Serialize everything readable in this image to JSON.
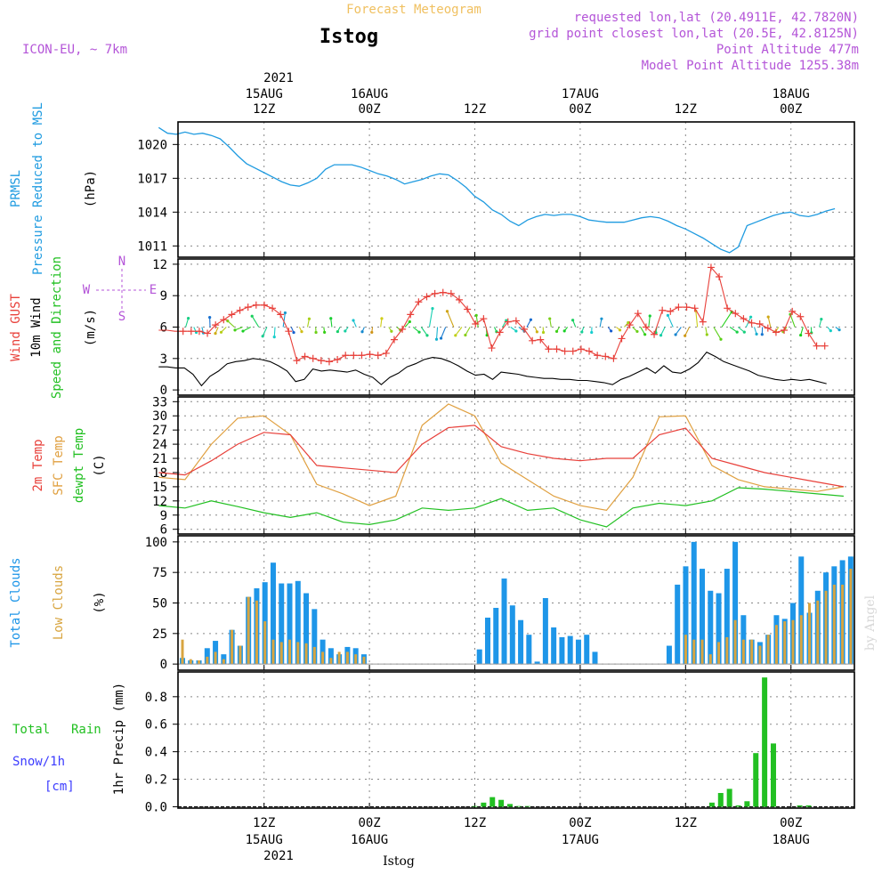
{
  "header": {
    "product": "Forecast Meteogram",
    "station": "Istog",
    "model": "ICON-EU, ~ 7km",
    "requested": "requested lon,lat (20.4911E, 42.7820N)",
    "gridpoint": "grid point closest lon,lat (20.5E, 42.8125N)",
    "point_alt": "Point Altitude 477m",
    "model_alt": "Model Point Altitude 1255.38m",
    "footer": "Istog",
    "credit": "by Angel"
  },
  "time_axis": {
    "top_year": "2021",
    "ticks": [
      {
        "hour": 12,
        "top1": "15AUG",
        "top2": "12Z",
        "bot1": "12Z",
        "bot2": "15AUG"
      },
      {
        "hour": 24,
        "top1": "16AUG",
        "top2": "00Z",
        "bot1": "00Z",
        "bot2": "16AUG"
      },
      {
        "hour": 36,
        "top1": "",
        "top2": "12Z",
        "bot1": "12Z",
        "bot2": ""
      },
      {
        "hour": 48,
        "top1": "17AUG",
        "top2": "00Z",
        "bot1": "00Z",
        "bot2": "17AUG"
      },
      {
        "hour": 60,
        "top1": "",
        "top2": "12Z",
        "bot1": "12Z",
        "bot2": ""
      },
      {
        "hour": 72,
        "top1": "18AUG",
        "top2": "00Z",
        "bot1": "00Z",
        "bot2": "18AUG"
      }
    ],
    "bottom_year": "2021"
  },
  "panel_labels": {
    "p1": {
      "a": "PRMSL",
      "b": "Pressure Reduced to MSL",
      "unit": "(hPa)"
    },
    "p2": {
      "a": "Wind GUST",
      "b": "10m Wind",
      "c": "Speed and Direction",
      "unit": "(m/s)",
      "compass": {
        "n": "N",
        "s": "S",
        "e": "E",
        "w": "W"
      }
    },
    "p3": {
      "a": "2m Temp",
      "b": "SFC Temp",
      "c": "dewpt Temp",
      "unit": "(C)"
    },
    "p4": {
      "a": "Total Clouds",
      "b": "Low Clouds",
      "unit": "(%)"
    },
    "p5": {
      "a": "Total",
      "a2": "Rain",
      "b": "Snow/1h",
      "c": "[cm]",
      "d": "1hr Precip (mm)"
    }
  },
  "colors": {
    "pressure": "#1f9be0",
    "gust": "#e8403a",
    "wind": "#000000",
    "t2m": "#e8403a",
    "tsfc": "#e0a040",
    "dewpt": "#22c022",
    "total_clouds": "#1e96e8",
    "low_clouds": "#d8a540",
    "rain": "#22c022",
    "label_purple": "#b455d8",
    "snow_label": "#3c3cff"
  },
  "chart_data": [
    {
      "type": "line",
      "name": "PRMSL",
      "x_unit": "hours since 15AUG 00Z",
      "ylim": [
        1010,
        1022
      ],
      "yticks": [
        1011,
        1014,
        1017,
        1020
      ],
      "grid": true,
      "x": [
        0,
        1,
        2,
        3,
        4,
        5,
        6,
        7,
        8,
        9,
        10,
        11,
        12,
        13,
        14,
        15,
        16,
        17,
        18,
        19,
        20,
        21,
        22,
        23,
        24,
        25,
        26,
        27,
        28,
        29,
        30,
        31,
        32,
        33,
        34,
        35,
        36,
        37,
        38,
        39,
        40,
        41,
        42,
        43,
        44,
        45,
        46,
        47,
        48,
        49,
        50,
        51,
        52,
        53,
        54,
        55,
        56,
        57,
        58,
        59,
        60,
        61,
        62,
        63,
        64,
        65,
        66,
        67,
        68,
        69,
        70,
        71,
        72,
        73,
        74,
        75,
        76,
        77
      ],
      "values": [
        1021.5,
        1021,
        1020.9,
        1021.1,
        1020.9,
        1021,
        1020.8,
        1020.5,
        1019.8,
        1019,
        1018.3,
        1017.9,
        1017.5,
        1017.1,
        1016.7,
        1016.4,
        1016.3,
        1016.6,
        1017,
        1017.8,
        1018.2,
        1018.2,
        1018.2,
        1018,
        1017.7,
        1017.4,
        1017.2,
        1016.9,
        1016.5,
        1016.7,
        1016.9,
        1017.2,
        1017.4,
        1017.3,
        1016.8,
        1016.2,
        1015.4,
        1014.9,
        1014.2,
        1013.8,
        1013.2,
        1012.8,
        1013.3,
        1013.6,
        1013.8,
        1013.7,
        1013.8,
        1013.8,
        1013.6,
        1013.3,
        1013.2,
        1013.1,
        1013.1,
        1013.1,
        1013.3,
        1013.5,
        1013.6,
        1013.5,
        1013.2,
        1012.8,
        1012.5,
        1012.1,
        1011.7,
        1011.2,
        1010.7,
        1010.4,
        1010.9,
        1012.8,
        1013.1,
        1013.4,
        1013.7,
        1013.9,
        1014,
        1013.7,
        1013.6,
        1013.8,
        1014.1,
        1014.3
      ]
    },
    {
      "type": "line",
      "name": "Wind",
      "ylim": [
        -0.5,
        12.5
      ],
      "yticks": [
        0,
        3,
        6,
        9,
        12
      ],
      "grid": true,
      "gust": [
        5.7,
        5.7,
        5.6,
        5.6,
        5.6,
        5.6,
        5.4,
        6.2,
        6.7,
        7.2,
        7.6,
        7.9,
        8.1,
        8.1,
        7.8,
        7.2,
        5.6,
        2.8,
        3.2,
        3.0,
        2.8,
        2.7,
        2.9,
        3.3,
        3.3,
        3.3,
        3.4,
        3.3,
        3.5,
        4.8,
        5.8,
        7.2,
        8.4,
        8.9,
        9.2,
        9.3,
        9.2,
        8.6,
        7.7,
        6.3,
        6.8,
        4.0,
        5.5,
        6.5,
        6.6,
        5.8,
        4.7,
        4.8,
        3.9,
        3.9,
        3.7,
        3.7,
        3.9,
        3.7,
        3.3,
        3.2,
        3.0,
        4.9,
        6.2,
        7.3,
        6.0,
        5.3,
        7.6,
        7.5,
        7.9,
        7.9,
        7.8,
        6.5,
        11.7,
        10.8,
        7.8,
        7.3,
        6.8,
        6.4,
        6.3,
        5.9,
        5.5,
        5.7,
        7.5,
        7.0,
        5.4,
        4.2,
        4.2
      ],
      "wind10": [
        2.2,
        2.2,
        2.1,
        2.1,
        1.5,
        0.4,
        1.3,
        1.8,
        2.5,
        2.7,
        2.8,
        3.0,
        2.9,
        2.7,
        2.3,
        1.8,
        0.8,
        1.0,
        2.0,
        1.8,
        1.9,
        1.8,
        1.7,
        1.9,
        1.5,
        1.2,
        0.5,
        1.2,
        1.6,
        2.2,
        2.5,
        2.9,
        3.1,
        3.0,
        2.7,
        2.3,
        1.8,
        1.4,
        1.5,
        1.0,
        1.7,
        1.6,
        1.5,
        1.3,
        1.2,
        1.1,
        1.1,
        1.0,
        1.0,
        0.9,
        0.9,
        0.8,
        0.7,
        0.5,
        1.0,
        1.3,
        1.7,
        2.1,
        1.6,
        2.3,
        1.7,
        1.6,
        2.0,
        2.6,
        3.6,
        3.2,
        2.7,
        2.4,
        2.1,
        1.8,
        1.4,
        1.2,
        1.0,
        0.9,
        1.0,
        0.9,
        1.0,
        0.8,
        0.6
      ]
    },
    {
      "type": "line",
      "name": "Temperature",
      "ylim": [
        5,
        34
      ],
      "yticks": [
        6,
        9,
        12,
        15,
        18,
        21,
        24,
        27,
        30,
        33
      ],
      "grid": true,
      "x": [
        0,
        3,
        6,
        9,
        12,
        15,
        18,
        21,
        24,
        27,
        30,
        33,
        36,
        39,
        42,
        45,
        48,
        51,
        54,
        57,
        60,
        63,
        66,
        69,
        72,
        75,
        78
      ],
      "t2m": [
        18,
        17.5,
        20.5,
        24,
        26.5,
        26,
        19.5,
        19,
        18.5,
        18,
        24,
        27.5,
        28,
        23.5,
        22,
        21,
        20.5,
        21,
        21,
        26,
        27.4,
        21,
        19.5,
        18,
        17,
        16,
        15
      ],
      "tsfc": [
        17,
        16.5,
        24,
        29.5,
        30,
        26,
        15.5,
        13.5,
        11,
        13,
        28,
        32.5,
        30,
        20,
        16.5,
        13,
        11,
        10,
        17,
        29.8,
        30,
        19.5,
        16.5,
        15,
        14.5,
        14,
        15
      ],
      "dewpt": [
        11,
        10.5,
        12,
        10.8,
        9.5,
        8.5,
        9.5,
        7.5,
        7,
        8,
        10.5,
        10,
        10.5,
        12.5,
        10,
        10.5,
        8,
        6.5,
        10.5,
        11.5,
        11,
        12,
        14.8,
        14.5,
        14,
        13.5,
        13
      ]
    },
    {
      "type": "bar",
      "name": "Clouds",
      "ylim": [
        -5,
        105
      ],
      "yticks": [
        0,
        25,
        50,
        75,
        100
      ],
      "grid": true,
      "total": [
        5,
        3,
        3,
        13,
        19,
        8,
        28,
        15,
        55,
        62,
        67,
        83,
        66,
        66,
        68,
        58,
        45,
        20,
        13,
        8,
        14,
        13,
        8,
        0,
        0,
        0,
        0,
        0,
        0,
        0,
        0,
        0,
        0,
        0,
        0,
        0,
        12,
        38,
        46,
        70,
        48,
        36,
        24,
        2,
        54,
        30,
        22,
        23,
        20,
        24,
        10,
        0,
        0,
        0,
        0,
        0,
        0,
        0,
        0,
        15,
        65,
        80,
        100,
        78,
        60,
        58,
        78,
        100,
        40,
        20,
        18,
        24,
        40,
        37,
        50,
        88,
        42,
        60,
        75,
        80,
        85,
        88
      ],
      "low": [
        20,
        4,
        3,
        6,
        10,
        4,
        28,
        15,
        55,
        52,
        35,
        20,
        18,
        20,
        18,
        17,
        14,
        10,
        5,
        10,
        10,
        8,
        6,
        0,
        0,
        0,
        0,
        0,
        0,
        0,
        0,
        0,
        0,
        0,
        0,
        0,
        0,
        0,
        0,
        0,
        0,
        0,
        0,
        0,
        0,
        0,
        0,
        0,
        0,
        0,
        0,
        0,
        0,
        0,
        0,
        0,
        0,
        0,
        0,
        0,
        0,
        24,
        20,
        20,
        8,
        18,
        22,
        36,
        20,
        20,
        15,
        24,
        32,
        35,
        36,
        40,
        50,
        52,
        60,
        65,
        65,
        78
      ]
    },
    {
      "type": "bar",
      "name": "Precipitation",
      "ylim": [
        -0.01,
        0.98
      ],
      "yticks": [
        0,
        0.2,
        0.4,
        0.6,
        0.8
      ],
      "grid": true,
      "x": [
        36,
        37,
        38,
        39,
        40,
        41,
        42,
        63,
        64,
        65,
        66,
        67,
        68,
        69,
        70,
        71,
        72,
        73,
        74
      ],
      "values": [
        0.005,
        0.03,
        0.07,
        0.05,
        0.02,
        0.005,
        0.005,
        0.03,
        0.1,
        0.13,
        0.01,
        0.04,
        0.39,
        0.94,
        0.46,
        0,
        0,
        0.01,
        0.01
      ]
    }
  ]
}
